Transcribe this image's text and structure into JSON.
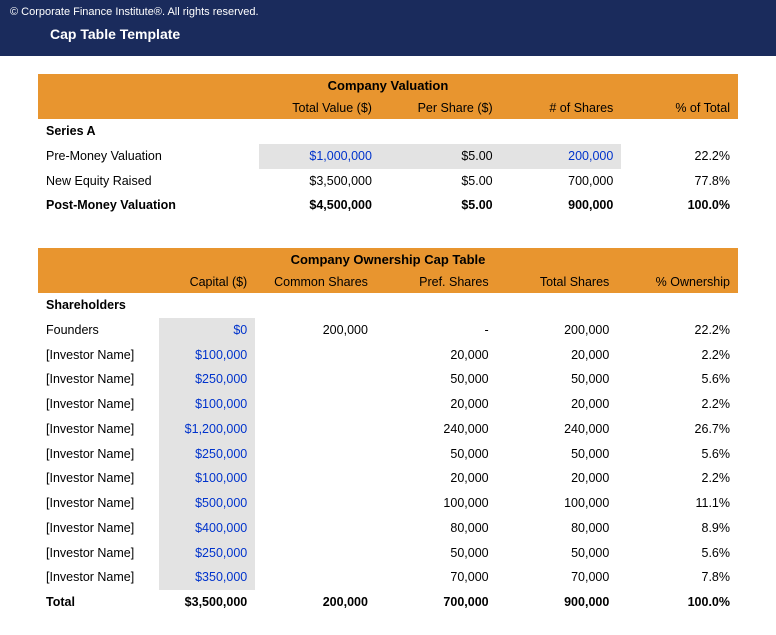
{
  "header": {
    "copyright": "© Corporate Finance Institute®. All rights reserved.",
    "title": "Cap Table Template"
  },
  "valuation": {
    "section_title": "Company Valuation",
    "columns": [
      "",
      "Total Value ($)",
      "Per Share ($)",
      "# of Shares",
      "% of Total"
    ],
    "group_label": "Series A",
    "rows": [
      {
        "label": "Pre-Money Valuation",
        "total": "$1,000,000",
        "per_share": "$5.00",
        "shares": "200,000",
        "pct": "22.2%",
        "highlight": true
      },
      {
        "label": "New Equity Raised",
        "total": "$3,500,000",
        "per_share": "$5.00",
        "shares": "700,000",
        "pct": "77.8%",
        "highlight": false
      }
    ],
    "total_row": {
      "label": "Post-Money Valuation",
      "total": "$4,500,000",
      "per_share": "$5.00",
      "shares": "900,000",
      "pct": "100.0%"
    }
  },
  "cap": {
    "section_title": "Company Ownership Cap Table",
    "columns": [
      "",
      "Capital ($)",
      "Common Shares",
      "Pref. Shares",
      "Total Shares",
      "% Ownership"
    ],
    "group_label": "Shareholders",
    "rows": [
      {
        "label": "Founders",
        "capital": "$0",
        "common": "200,000",
        "pref": "-",
        "total": "200,000",
        "pct": "22.2%"
      },
      {
        "label": "[Investor Name]",
        "capital": "$100,000",
        "common": "",
        "pref": "20,000",
        "total": "20,000",
        "pct": "2.2%"
      },
      {
        "label": "[Investor Name]",
        "capital": "$250,000",
        "common": "",
        "pref": "50,000",
        "total": "50,000",
        "pct": "5.6%"
      },
      {
        "label": "[Investor Name]",
        "capital": "$100,000",
        "common": "",
        "pref": "20,000",
        "total": "20,000",
        "pct": "2.2%"
      },
      {
        "label": "[Investor Name]",
        "capital": "$1,200,000",
        "common": "",
        "pref": "240,000",
        "total": "240,000",
        "pct": "26.7%"
      },
      {
        "label": "[Investor Name]",
        "capital": "$250,000",
        "common": "",
        "pref": "50,000",
        "total": "50,000",
        "pct": "5.6%"
      },
      {
        "label": "[Investor Name]",
        "capital": "$100,000",
        "common": "",
        "pref": "20,000",
        "total": "20,000",
        "pct": "2.2%"
      },
      {
        "label": "[Investor Name]",
        "capital": "$500,000",
        "common": "",
        "pref": "100,000",
        "total": "100,000",
        "pct": "11.1%"
      },
      {
        "label": "[Investor Name]",
        "capital": "$400,000",
        "common": "",
        "pref": "80,000",
        "total": "80,000",
        "pct": "8.9%"
      },
      {
        "label": "[Investor Name]",
        "capital": "$250,000",
        "common": "",
        "pref": "50,000",
        "total": "50,000",
        "pct": "5.6%"
      },
      {
        "label": "[Investor Name]",
        "capital": "$350,000",
        "common": "",
        "pref": "70,000",
        "total": "70,000",
        "pct": "7.8%"
      }
    ],
    "total_row": {
      "label": "Total",
      "capital": "$3,500,000",
      "common": "200,000",
      "pref": "700,000",
      "total": "900,000",
      "pct": "100.0%"
    }
  },
  "colors": {
    "header_bg": "#1a2b5c",
    "orange": "#e8952f",
    "input_blue": "#0033cc",
    "input_gray": "#e3e3e3"
  }
}
